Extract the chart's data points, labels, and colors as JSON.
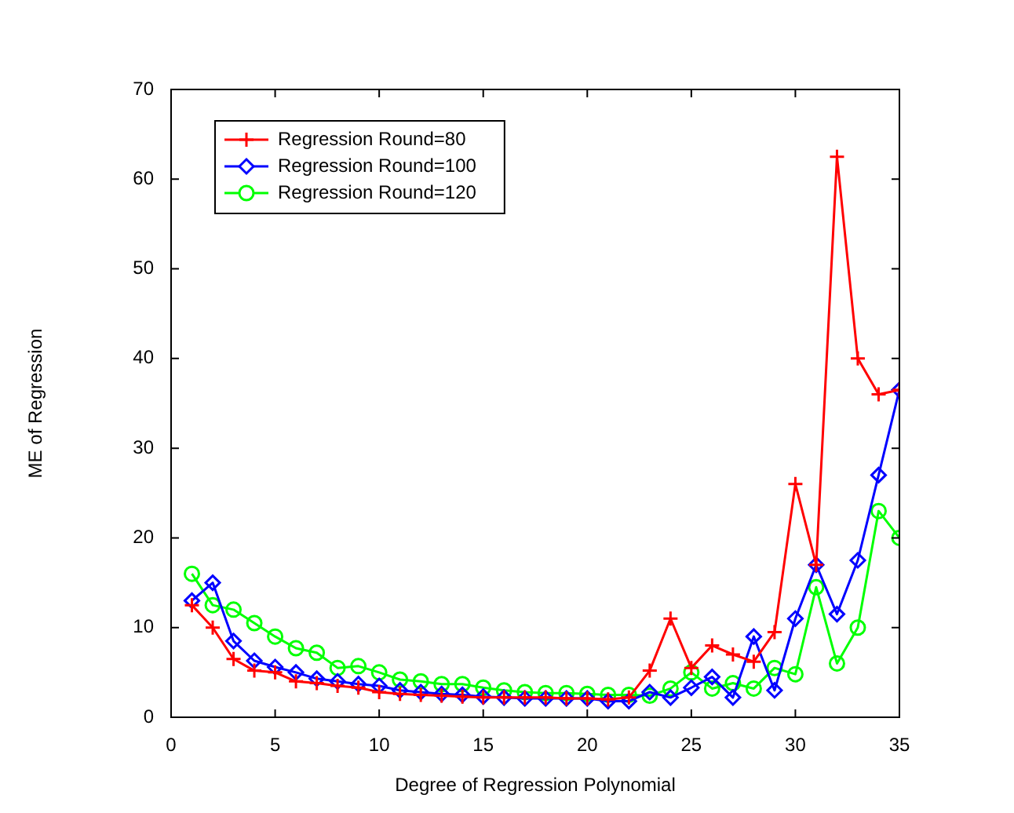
{
  "chart_data": {
    "type": "line",
    "xlabel": "Degree of Regression Polynomial",
    "ylabel": "ME of Regression",
    "x": [
      1,
      2,
      3,
      4,
      5,
      6,
      7,
      8,
      9,
      10,
      11,
      12,
      13,
      14,
      15,
      16,
      17,
      18,
      19,
      20,
      21,
      22,
      23,
      24,
      25,
      26,
      27,
      28,
      29,
      30,
      31,
      32,
      33,
      34,
      35
    ],
    "xlim": [
      0,
      35
    ],
    "xticks": [
      0,
      5,
      10,
      15,
      20,
      25,
      30,
      35
    ],
    "ylim": [
      0,
      70
    ],
    "yticks": [
      0,
      10,
      20,
      30,
      40,
      50,
      60,
      70
    ],
    "grid": false,
    "legend": "top left",
    "line_style": "solid",
    "series": [
      {
        "name": "Regression Round=80",
        "color": "#ff0000",
        "marker": "cross",
        "values": [
          12.5,
          10,
          6.5,
          5.2,
          5,
          4,
          3.8,
          3.5,
          3.3,
          2.8,
          2.6,
          2.5,
          2.4,
          2.3,
          2.2,
          2.2,
          2.2,
          2.2,
          2.1,
          2.1,
          2,
          2.2,
          5.2,
          11,
          5.5,
          8,
          7,
          6.2,
          9.5,
          26,
          17,
          62.5,
          40,
          36,
          36.5
        ]
      },
      {
        "name": "Regression Round=100",
        "color": "#0000ff",
        "marker": "diamond",
        "values": [
          13,
          15,
          8.5,
          6.3,
          5.6,
          5,
          4.3,
          4,
          3.7,
          3.5,
          3,
          2.8,
          2.6,
          2.5,
          2.3,
          2.2,
          2.1,
          2.1,
          2.1,
          2.1,
          1.8,
          1.8,
          2.8,
          2.2,
          3.3,
          4.5,
          2.2,
          9,
          3,
          11,
          17,
          11.5,
          17.5,
          27,
          36.5
        ]
      },
      {
        "name": "Regression Round=120",
        "color": "#00ff00",
        "marker": "circle",
        "values": [
          16,
          12.5,
          12,
          10.5,
          9,
          7.7,
          7.2,
          5.5,
          5.7,
          5,
          4.2,
          4,
          3.7,
          3.7,
          3.3,
          3,
          2.8,
          2.7,
          2.7,
          2.6,
          2.5,
          2.5,
          2.4,
          3.2,
          5,
          3.2,
          3.8,
          3.2,
          5.5,
          4.8,
          14.5,
          6,
          10,
          23,
          20
        ]
      }
    ]
  }
}
